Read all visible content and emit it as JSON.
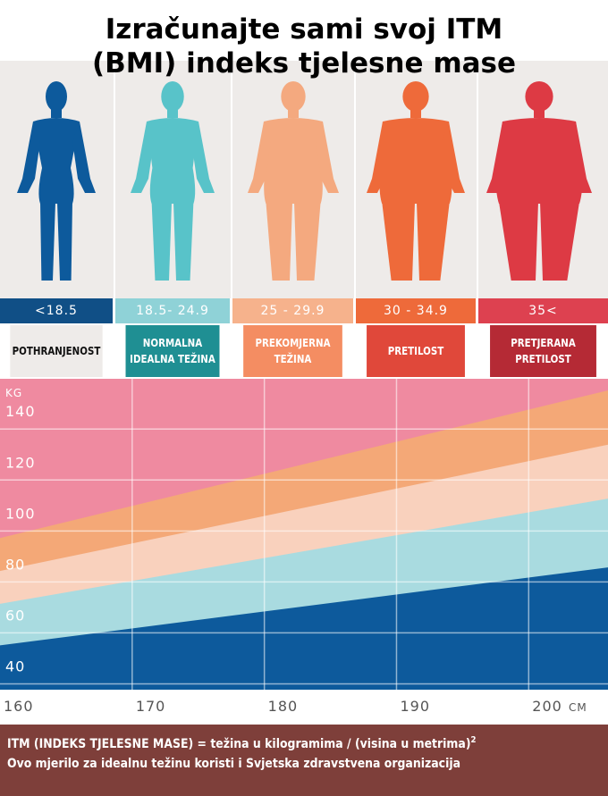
{
  "title": {
    "line1": "Izračunajte sami svoj ITM",
    "line2": "(BMI) indeks tjelesne mase"
  },
  "colors": {
    "underweight": "#0d5a9c",
    "normal": "#58c3c9",
    "overweight": "#f4a97f",
    "obese": "#ee6a3a",
    "severe": "#dd3a44",
    "band_underweight": "#104f86",
    "band_normal": "#8fd2d7",
    "band_overweight": "#f6b28c",
    "band_obese": "#ee6a3a",
    "band_severe": "#dd4150",
    "cat_normal": "#1f8f93",
    "cat_overweight": "#f48d62",
    "cat_obese": "#e0483a",
    "cat_severe": "#b52a35",
    "figure_background": "#eeebe9",
    "formula_background": "#7e3f3a"
  },
  "categories": [
    {
      "range": "<18.5",
      "name_lines": [
        "POTHRANJENOST"
      ],
      "figure_icon": "slim-person-icon"
    },
    {
      "range": "18.5- 24.9",
      "name_lines": [
        "NORMALNA",
        "IDEALNA TEŽINA"
      ],
      "figure_icon": "normal-person-icon"
    },
    {
      "range": "25 - 29.9",
      "name_lines": [
        "PREKOMJERNA",
        "TEŽINA"
      ],
      "figure_icon": "overweight-person-icon"
    },
    {
      "range": "30 - 34.9",
      "name_lines": [
        "PRETILOST"
      ],
      "figure_icon": "obese-person-icon"
    },
    {
      "range": "35<",
      "name_lines": [
        "PRETJERANA",
        "PRETILOST"
      ],
      "figure_icon": "severely-obese-person-icon"
    }
  ],
  "chart_data": {
    "type": "area",
    "x": [
      160,
      200
    ],
    "xlim": [
      160,
      206
    ],
    "ylim": [
      30,
      152
    ],
    "ylabel": "KG",
    "xunit": "CM",
    "x_ticks": [
      "160",
      "170",
      "180",
      "190",
      "200"
    ],
    "y_ticks": [
      "40",
      "60",
      "80",
      "100",
      "120",
      "140"
    ],
    "series": [
      {
        "name": "<18.5",
        "values": [
          47.4,
          74.0
        ]
      },
      {
        "name": "18.5- 24.9",
        "values": [
          63.7,
          99.6
        ]
      },
      {
        "name": "25 - 29.9",
        "values": [
          76.6,
          119.7
        ]
      },
      {
        "name": "30 - 34.9",
        "values": [
          89.5,
          139.9
        ]
      },
      {
        "name": "35<",
        "values": [
          152,
          152
        ]
      }
    ],
    "grid": true
  },
  "formula": {
    "line1": "ITM (INDEKS TJELESNE MASE) = težina u kilogramima / (visina u metrima)",
    "exponent": "2",
    "line2": "Ovo mjerilo za idealnu težinu koristi i Svjetska zdravstvena organizacija"
  }
}
